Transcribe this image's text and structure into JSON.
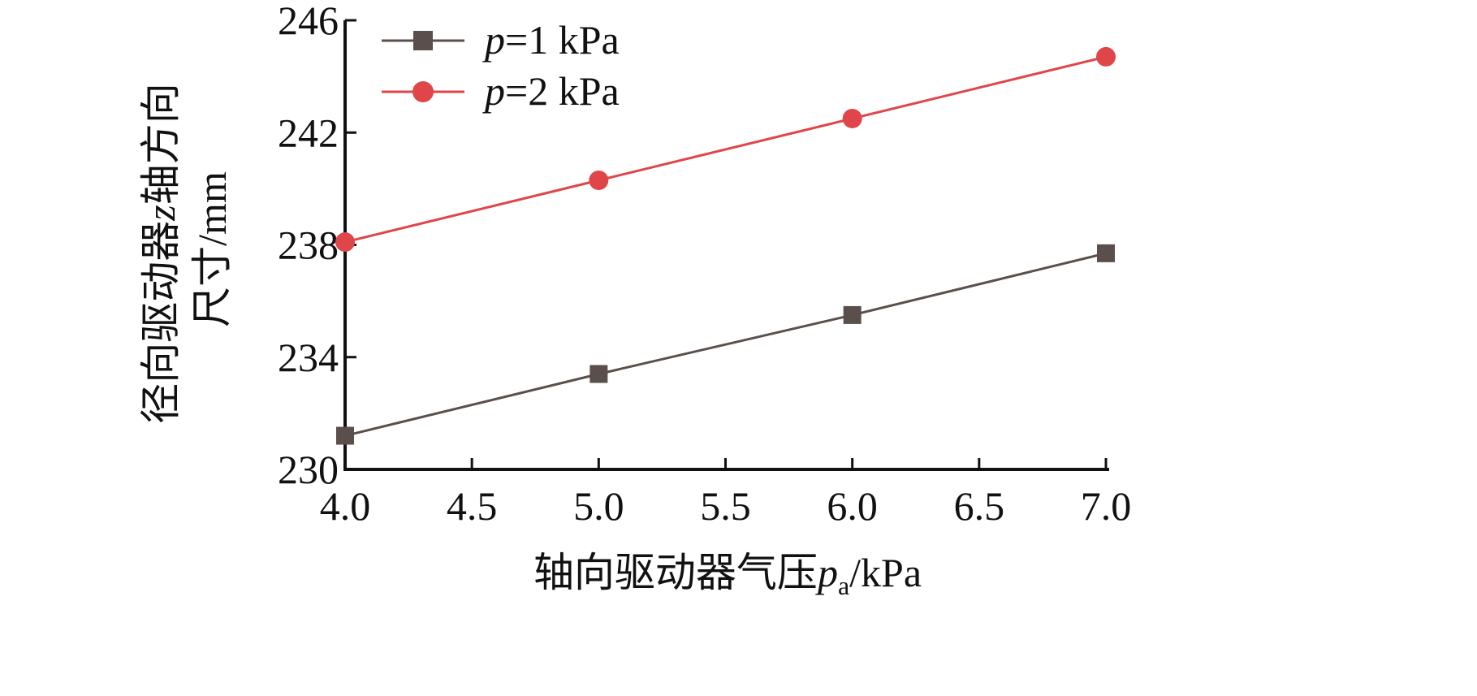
{
  "chart_data": {
    "type": "line",
    "x": [
      4.0,
      5.0,
      6.0,
      7.0
    ],
    "series": [
      {
        "name_var": "p",
        "name_rest": "=1 kPa",
        "color": "#5a4f4b",
        "marker": "square",
        "values": [
          231.2,
          233.4,
          235.5,
          237.7
        ]
      },
      {
        "name_var": "p",
        "name_rest": "=2 kPa",
        "color": "#e0454a",
        "marker": "circle",
        "values": [
          238.1,
          240.3,
          242.5,
          244.7
        ]
      }
    ],
    "xlim": [
      4.0,
      7.0
    ],
    "ylim": [
      230,
      246
    ],
    "x_ticks": [
      4.0,
      4.5,
      5.0,
      5.5,
      6.0,
      6.5,
      7.0
    ],
    "x_tick_labels": [
      "4.0",
      "4.5",
      "5.0",
      "5.5",
      "6.0",
      "6.5",
      "7.0"
    ],
    "y_ticks": [
      230,
      234,
      238,
      242,
      246
    ],
    "y_tick_labels": [
      "230",
      "234",
      "238",
      "242",
      "246"
    ],
    "xlabel": {
      "prefix": "轴向驱动器气压",
      "var": "p",
      "sub": "a",
      "suffix": "/kPa"
    },
    "ylabel": {
      "line1_prefix": "径向驱动器",
      "line1_var": "z",
      "line1_suffix": "轴方向",
      "line2_cn": "尺寸",
      "line2_unit": "/mm"
    },
    "legend_position": "top-left",
    "grid": false
  }
}
